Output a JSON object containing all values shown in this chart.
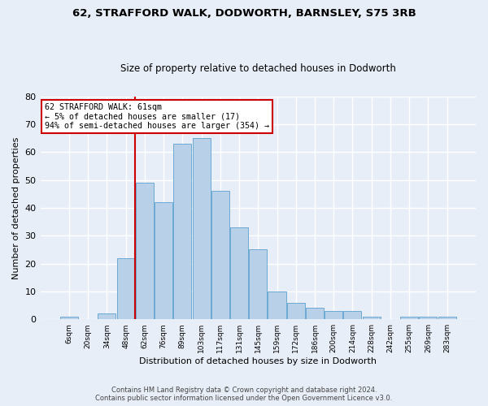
{
  "title1": "62, STRAFFORD WALK, DODWORTH, BARNSLEY, S75 3RB",
  "title2": "Size of property relative to detached houses in Dodworth",
  "xlabel": "Distribution of detached houses by size in Dodworth",
  "ylabel": "Number of detached properties",
  "footnote1": "Contains HM Land Registry data © Crown copyright and database right 2024.",
  "footnote2": "Contains public sector information licensed under the Open Government Licence v3.0.",
  "categories": [
    "6sqm",
    "20sqm",
    "34sqm",
    "48sqm",
    "62sqm",
    "76sqm",
    "89sqm",
    "103sqm",
    "117sqm",
    "131sqm",
    "145sqm",
    "159sqm",
    "172sqm",
    "186sqm",
    "200sqm",
    "214sqm",
    "228sqm",
    "242sqm",
    "255sqm",
    "269sqm",
    "283sqm"
  ],
  "values": [
    1,
    0,
    2,
    22,
    49,
    42,
    63,
    65,
    46,
    33,
    25,
    10,
    6,
    4,
    3,
    3,
    1,
    0,
    1,
    1,
    1
  ],
  "bar_color": "#b8d0e8",
  "bar_edge_color": "#6aaad4",
  "background_color": "#e8eef8",
  "grid_color": "#ffffff",
  "red_line_index": 4,
  "annotation_text1": "62 STRAFFORD WALK: 61sqm",
  "annotation_text2": "← 5% of detached houses are smaller (17)",
  "annotation_text3": "94% of semi-detached houses are larger (354) →",
  "annotation_box_color": "#ffffff",
  "annotation_box_edge": "#cc0000",
  "red_line_color": "#cc0000",
  "ylim": [
    0,
    80
  ],
  "yticks": [
    0,
    10,
    20,
    30,
    40,
    50,
    60,
    70,
    80
  ]
}
